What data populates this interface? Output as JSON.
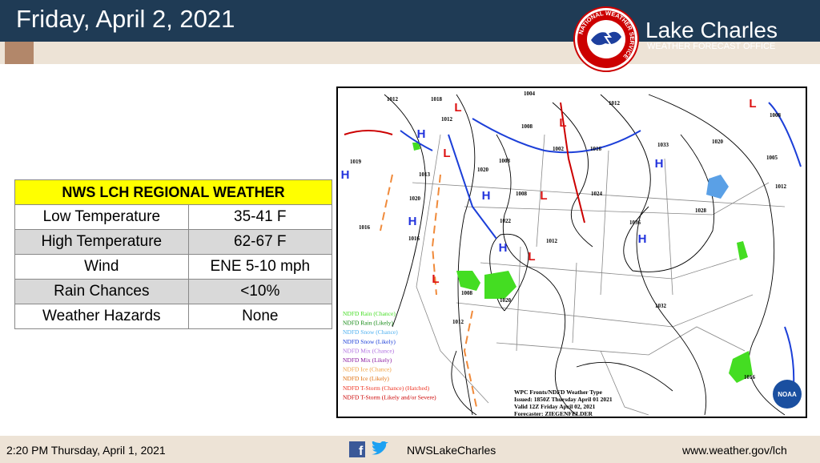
{
  "header": {
    "title": "Friday, April 2, 2021",
    "office_name": "Lake Charles",
    "office_subtitle": "WEATHER FORECAST OFFICE",
    "logo_ring": "NATIONAL WEATHER SERVICE"
  },
  "table": {
    "header": "NWS LCH REGIONAL WEATHER",
    "rows": [
      [
        "Low Temperature",
        "35-41 F"
      ],
      [
        "High Temperature",
        "62-67 F"
      ],
      [
        "Wind",
        "ENE 5-10 mph"
      ],
      [
        "Rain Chances",
        "<10%"
      ],
      [
        "Weather Hazards",
        "None"
      ]
    ]
  },
  "map": {
    "pressure_labels": [
      "1012",
      "1018",
      "1004",
      "1012",
      "1012",
      "1008",
      "1008",
      "1019",
      "1020",
      "1008",
      "1002",
      "1016",
      "1033",
      "1020",
      "1005",
      "1013",
      "1008",
      "1024",
      "1012",
      "1020",
      "1022",
      "1028",
      "1036",
      "1016",
      "1016",
      "1012",
      "1008",
      "1020",
      "1032",
      "1012",
      "1016"
    ],
    "highs": [
      "H",
      "H",
      "H",
      "H",
      "H",
      "H",
      "H"
    ],
    "lows": [
      "L",
      "L",
      "L",
      "L",
      "L",
      "L",
      "L"
    ],
    "legend": [
      "NDFD Rain (Chance)",
      "NDFD Rain (Likely)",
      "NDFD Snow (Chance)",
      "NDFD Snow (Likely)",
      "NDFD Mix (Chance)",
      "NDFD Mix (Likely)",
      "NDFD Ice (Chance)",
      "NDFD Ice (Likely)",
      "NDFD T-Storm (Chance) (Hatched)",
      "NDFD T-Storm (Likely and/or Severe)"
    ],
    "caption": [
      "WPC Fronts/NDFD Weather Type",
      "Issued: 1850Z Thursday April 01 2021",
      "Valid 12Z Friday April 02, 2021",
      "Forecaster: ZIEGENFELDER"
    ],
    "noaa": "NOAA"
  },
  "footer": {
    "timestamp": "2:20 PM Thursday, April 1, 2021",
    "social": "NWSLakeCharles",
    "website": "www.weather.gov/lch"
  }
}
